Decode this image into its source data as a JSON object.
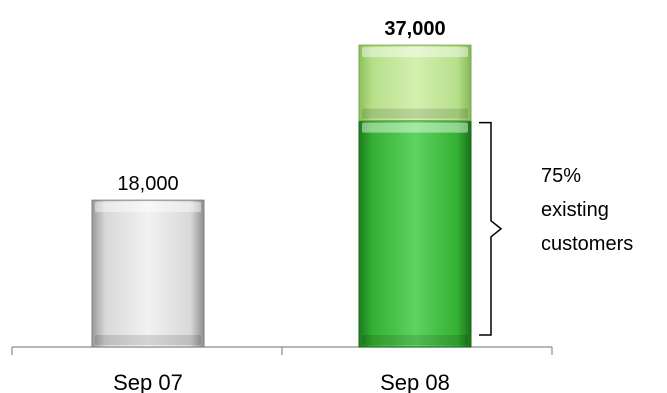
{
  "chart_data": {
    "type": "bar",
    "stacked": true,
    "categories": [
      "Sep 07",
      "Sep 08"
    ],
    "series": [
      {
        "values": [
          18000,
          27750
        ],
        "colors": [
          "#d9d9d9",
          "#3cb43c"
        ]
      },
      {
        "values": [
          0,
          9250
        ],
        "colors": [
          "#d9d9d9",
          "#b9e08c"
        ]
      }
    ],
    "totals": [
      18000,
      37000
    ],
    "data_labels": [
      "18,000",
      "37,000"
    ],
    "data_label_bold": [
      false,
      true
    ],
    "ylim": [
      0,
      38000
    ],
    "grid": false,
    "title": "",
    "xlabel": "",
    "ylabel": "",
    "annotation": {
      "bracket_category": "Sep 08",
      "bracket_range": [
        0,
        27750
      ],
      "lines": [
        "75%",
        "existing",
        "customers"
      ]
    }
  }
}
